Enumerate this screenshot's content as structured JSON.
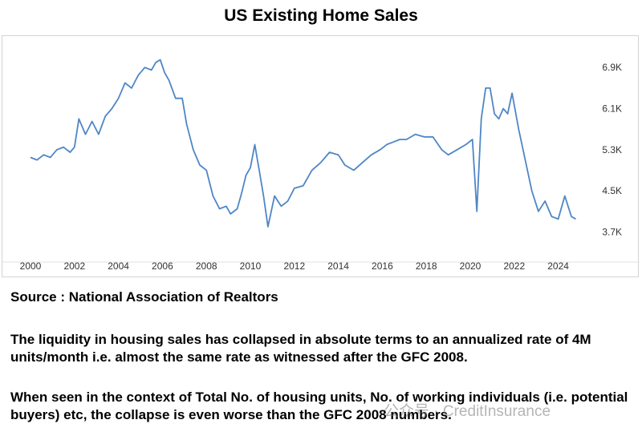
{
  "title": "US Existing Home Sales",
  "source": "Source : National Association of Realtors",
  "paragraph1": "The liquidity in housing sales has collapsed in absolute terms to an annualized rate of 4M units/month i.e. almost the same rate as witnessed after the GFC 2008.",
  "paragraph2": "When seen in the context of Total No. of housing units, No. of working individuals (i.e. potential buyers) etc, the collapse is even worse than the GFC 2008 numbers.",
  "watermark": "公众号 · CreditInsurance",
  "colors": {
    "line": "#4f86c6",
    "axis": "#e0e0e0"
  },
  "chart_data": {
    "type": "line",
    "title": "US Existing Home Sales",
    "xlim": [
      2000,
      2025
    ],
    "ylim": [
      3.3,
      7.2
    ],
    "x_ticks": [
      2000,
      2002,
      2004,
      2006,
      2008,
      2010,
      2012,
      2014,
      2016,
      2018,
      2020,
      2022,
      2024
    ],
    "x_tick_labels": [
      "2000",
      "2002",
      "2004",
      "2006",
      "2008",
      "2010",
      "2012",
      "2014",
      "2016",
      "2018",
      "2020",
      "2022",
      "2024"
    ],
    "y_ticks": [
      3.7,
      4.5,
      5.3,
      6.1,
      6.9
    ],
    "y_tick_labels": [
      "3.7K",
      "4.5K",
      "5.3K",
      "6.1K",
      "6.9K"
    ],
    "grid": false,
    "series": [
      {
        "x": [
          2000.0,
          2000.3,
          2000.6,
          2000.9,
          2001.2,
          2001.5,
          2001.8,
          2002.0,
          2002.2,
          2002.5,
          2002.8,
          2003.1,
          2003.4,
          2003.7,
          2004.0,
          2004.3,
          2004.6,
          2004.9,
          2005.2,
          2005.5,
          2005.7,
          2005.9,
          2006.1,
          2006.3,
          2006.6,
          2006.9,
          2007.1,
          2007.4,
          2007.7,
          2008.0,
          2008.3,
          2008.6,
          2008.9,
          2009.1,
          2009.4,
          2009.6,
          2009.8,
          2010.0,
          2010.2,
          2010.4,
          2010.6,
          2010.8,
          2011.1,
          2011.4,
          2011.7,
          2012.0,
          2012.4,
          2012.8,
          2013.2,
          2013.6,
          2014.0,
          2014.3,
          2014.7,
          2015.1,
          2015.5,
          2015.9,
          2016.2,
          2016.5,
          2016.8,
          2017.1,
          2017.5,
          2017.9,
          2018.3,
          2018.7,
          2019.0,
          2019.4,
          2019.8,
          2020.1,
          2020.3,
          2020.5,
          2020.7,
          2020.9,
          2021.1,
          2021.3,
          2021.5,
          2021.7,
          2021.9,
          2022.2,
          2022.5,
          2022.8,
          2023.1,
          2023.4,
          2023.7,
          2024.0,
          2024.3,
          2024.6,
          2024.8
        ],
        "y": [
          5.15,
          5.1,
          5.2,
          5.15,
          5.3,
          5.35,
          5.25,
          5.35,
          5.9,
          5.6,
          5.85,
          5.6,
          5.95,
          6.1,
          6.3,
          6.6,
          6.5,
          6.75,
          6.9,
          6.85,
          7.0,
          7.05,
          6.8,
          6.65,
          6.3,
          6.3,
          5.8,
          5.3,
          5.0,
          4.9,
          4.4,
          4.15,
          4.2,
          4.05,
          4.15,
          4.45,
          4.8,
          4.95,
          5.4,
          4.9,
          4.4,
          3.8,
          4.4,
          4.2,
          4.3,
          4.55,
          4.6,
          4.9,
          5.05,
          5.25,
          5.2,
          5.0,
          4.9,
          5.05,
          5.2,
          5.3,
          5.4,
          5.45,
          5.5,
          5.5,
          5.6,
          5.55,
          5.55,
          5.3,
          5.2,
          5.3,
          5.4,
          5.5,
          4.1,
          5.9,
          6.5,
          6.5,
          6.0,
          5.9,
          6.1,
          6.0,
          6.4,
          5.7,
          5.1,
          4.5,
          4.1,
          4.3,
          4.0,
          3.95,
          4.4,
          4.0,
          3.95
        ]
      }
    ]
  }
}
